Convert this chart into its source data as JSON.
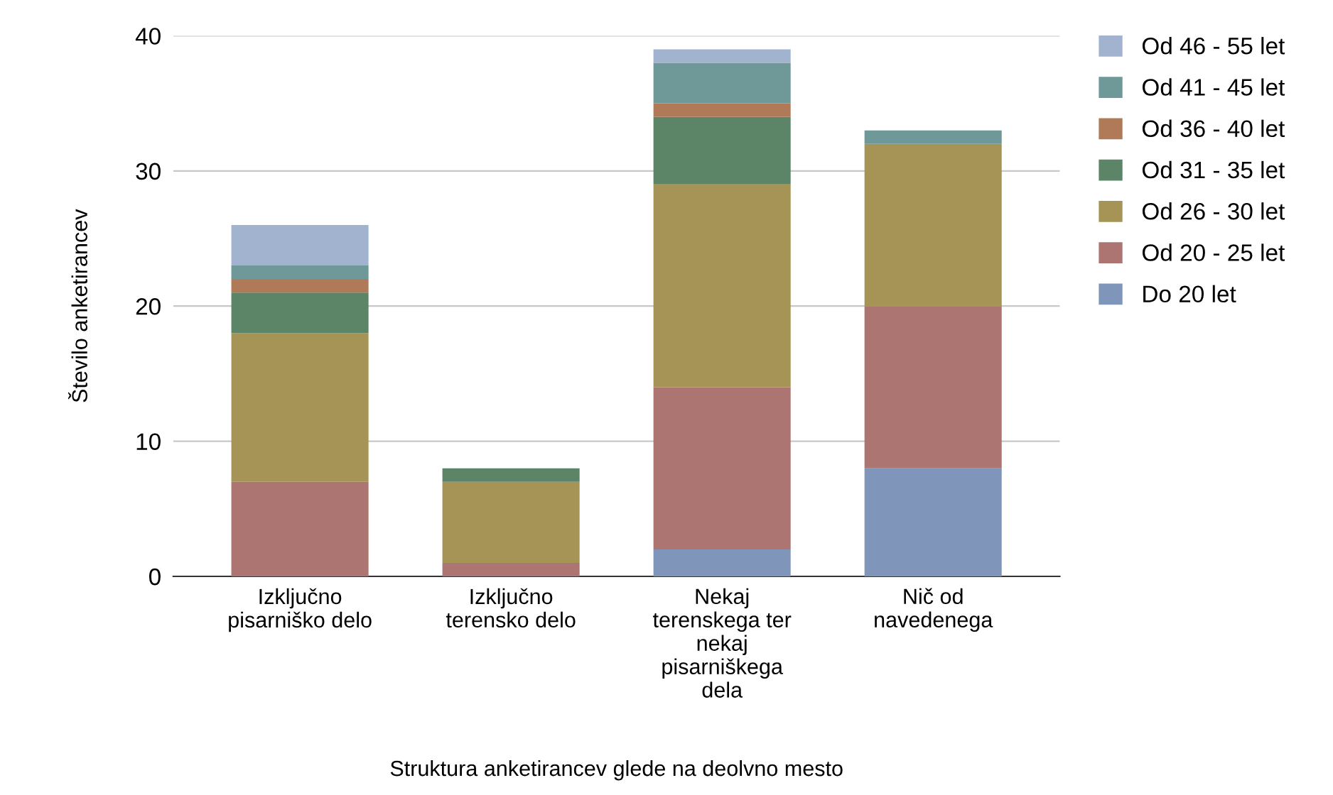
{
  "chart_data": {
    "type": "bar",
    "stacked": true,
    "xlabel": "Struktura anketirancev glede na deolvno mesto",
    "ylabel": "Število anketirancev",
    "categories": [
      "Izključno\npisarniško delo",
      "Izključno\nterensko delo",
      "Nekaj\nterenskega ter\nnekaj\npisarniškega\ndela",
      "Nič od\nnavedenega"
    ],
    "series": [
      {
        "name": "Do 20 let",
        "color": "#7f95b9",
        "values": [
          0,
          0,
          2,
          8
        ]
      },
      {
        "name": "Od 20 - 25 let",
        "color": "#ad7571",
        "values": [
          7,
          1,
          12,
          12
        ]
      },
      {
        "name": "Od 26 - 30 let",
        "color": "#a69456",
        "values": [
          11,
          6,
          15,
          12
        ]
      },
      {
        "name": "Od 31 - 35 let",
        "color": "#5b8566",
        "values": [
          3,
          1,
          5,
          0
        ]
      },
      {
        "name": "Od 36 - 40 let",
        "color": "#b07a58",
        "values": [
          1,
          0,
          1,
          0
        ]
      },
      {
        "name": "Od 41 - 45 let",
        "color": "#6f9898",
        "values": [
          1,
          0,
          3,
          1
        ]
      },
      {
        "name": "Od 46 - 55 let",
        "color": "#a2b3cf",
        "values": [
          3,
          0,
          1,
          0
        ]
      }
    ],
    "ylim": [
      0,
      40
    ],
    "yticks": [
      0,
      10,
      20,
      30,
      40
    ],
    "grid": "y",
    "legend": "right"
  }
}
